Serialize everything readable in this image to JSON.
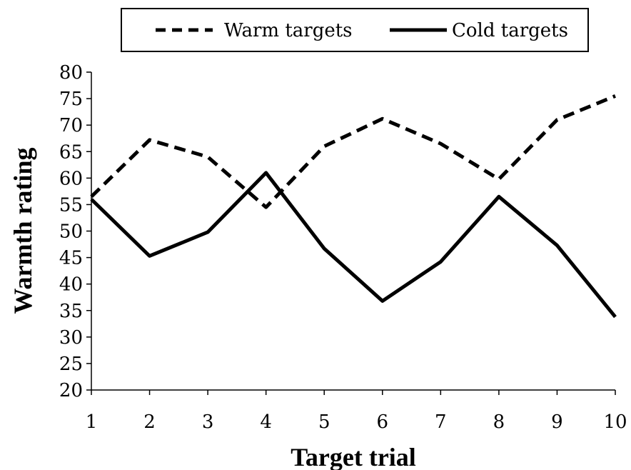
{
  "chart_data": {
    "type": "line",
    "title": "",
    "xlabel": "Target trial",
    "ylabel": "Warmth rating",
    "categories": [
      "1",
      "2",
      "3",
      "4",
      "5",
      "6",
      "7",
      "8",
      "9",
      "10"
    ],
    "ylim": [
      20,
      80
    ],
    "yticks": [
      "20",
      "25",
      "30",
      "35",
      "40",
      "45",
      "50",
      "55",
      "60",
      "65",
      "70",
      "75",
      "80"
    ],
    "grid": false,
    "legend_position": "top",
    "series": [
      {
        "name": "Warm targets",
        "style": "dashed",
        "color": "#000000",
        "values": [
          56.5,
          67.2,
          64.0,
          54.5,
          66.0,
          71.2,
          66.5,
          59.8,
          71.0,
          75.5
        ]
      },
      {
        "name": "Cold targets",
        "style": "solid",
        "color": "#000000",
        "values": [
          56.0,
          45.3,
          49.8,
          61.0,
          46.7,
          36.8,
          44.2,
          56.5,
          47.3,
          33.8
        ]
      }
    ]
  }
}
